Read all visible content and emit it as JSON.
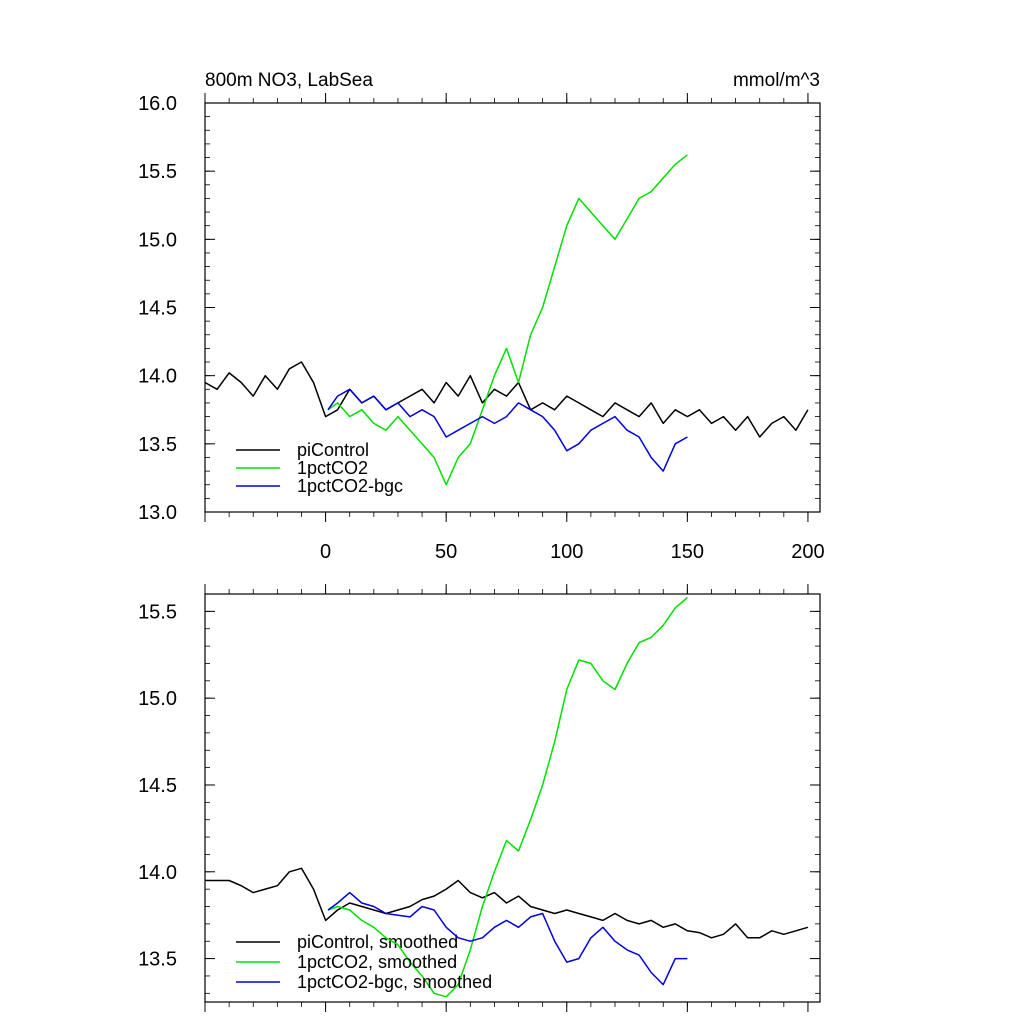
{
  "chart_data": [
    {
      "type": "line",
      "title": "800m NO3, LabSea",
      "units": "mmol/m^3",
      "xlim": [
        -50,
        205
      ],
      "ylim": [
        13.0,
        16.0
      ],
      "xticks": [
        0,
        50,
        100,
        150,
        200
      ],
      "yticks": [
        13.0,
        13.5,
        14.0,
        14.5,
        15.0,
        15.5,
        16.0
      ],
      "xtick_labels": [
        "0",
        "50",
        "100",
        "150",
        "200"
      ],
      "ytick_labels": [
        "13.0",
        "13.5",
        "14.0",
        "14.5",
        "15.0",
        "15.5",
        "16.0"
      ],
      "legend_position": "bottom-left",
      "series": [
        {
          "name": "piControl",
          "color": "#000000",
          "x": [
            -50,
            -45,
            -40,
            -35,
            -30,
            -25,
            -20,
            -15,
            -10,
            -5,
            0,
            5,
            10,
            15,
            20,
            25,
            30,
            35,
            40,
            45,
            50,
            55,
            60,
            65,
            70,
            75,
            80,
            85,
            90,
            95,
            100,
            105,
            110,
            115,
            120,
            125,
            130,
            135,
            140,
            145,
            150,
            155,
            160,
            165,
            170,
            175,
            180,
            185,
            190,
            195,
            200
          ],
          "y": [
            13.95,
            13.9,
            14.02,
            13.95,
            13.85,
            14.0,
            13.9,
            14.05,
            14.1,
            13.95,
            13.7,
            13.75,
            13.9,
            13.8,
            13.85,
            13.75,
            13.8,
            13.85,
            13.9,
            13.8,
            13.95,
            13.85,
            14.0,
            13.8,
            13.9,
            13.85,
            13.95,
            13.75,
            13.8,
            13.75,
            13.85,
            13.8,
            13.75,
            13.7,
            13.8,
            13.75,
            13.7,
            13.8,
            13.65,
            13.75,
            13.7,
            13.75,
            13.65,
            13.7,
            13.6,
            13.7,
            13.55,
            13.65,
            13.7,
            13.6,
            13.75
          ]
        },
        {
          "name": "1pctCO2",
          "color": "#00e000",
          "x": [
            1,
            5,
            10,
            15,
            20,
            25,
            30,
            35,
            40,
            45,
            50,
            55,
            60,
            65,
            70,
            75,
            80,
            85,
            90,
            95,
            100,
            105,
            110,
            115,
            120,
            125,
            130,
            135,
            140,
            145,
            150
          ],
          "y": [
            13.75,
            13.8,
            13.7,
            13.75,
            13.65,
            13.6,
            13.7,
            13.6,
            13.5,
            13.4,
            13.2,
            13.4,
            13.5,
            13.75,
            14.0,
            14.2,
            13.95,
            14.3,
            14.5,
            14.8,
            15.1,
            15.3,
            15.2,
            15.1,
            15.0,
            15.15,
            15.3,
            15.35,
            15.45,
            15.55,
            15.62
          ]
        },
        {
          "name": "1pctCO2-bgc",
          "color": "#0000e0",
          "x": [
            1,
            5,
            10,
            15,
            20,
            25,
            30,
            35,
            40,
            45,
            50,
            55,
            60,
            65,
            70,
            75,
            80,
            85,
            90,
            95,
            100,
            105,
            110,
            115,
            120,
            125,
            130,
            135,
            140,
            145,
            150
          ],
          "y": [
            13.75,
            13.85,
            13.9,
            13.8,
            13.85,
            13.75,
            13.8,
            13.7,
            13.75,
            13.7,
            13.55,
            13.6,
            13.65,
            13.7,
            13.65,
            13.7,
            13.8,
            13.75,
            13.7,
            13.6,
            13.45,
            13.5,
            13.6,
            13.65,
            13.7,
            13.6,
            13.55,
            13.4,
            13.3,
            13.5,
            13.55
          ]
        }
      ]
    },
    {
      "type": "line",
      "title": "",
      "xlim": [
        -50,
        205
      ],
      "ylim": [
        13.25,
        15.6
      ],
      "xticks": [
        0,
        50,
        100,
        150,
        200
      ],
      "yticks": [
        13.5,
        14.0,
        14.5,
        15.0,
        15.5
      ],
      "ytick_labels": [
        "13.5",
        "14.0",
        "14.5",
        "15.0",
        "15.5"
      ],
      "legend_position": "bottom-left",
      "series": [
        {
          "name": "piControl, smoothed",
          "color": "#000000",
          "x": [
            -50,
            -45,
            -40,
            -35,
            -30,
            -25,
            -20,
            -15,
            -10,
            -5,
            0,
            5,
            10,
            15,
            20,
            25,
            30,
            35,
            40,
            45,
            50,
            55,
            60,
            65,
            70,
            75,
            80,
            85,
            90,
            95,
            100,
            105,
            110,
            115,
            120,
            125,
            130,
            135,
            140,
            145,
            150,
            155,
            160,
            165,
            170,
            175,
            180,
            185,
            190,
            195,
            200
          ],
          "y": [
            13.95,
            13.95,
            13.95,
            13.92,
            13.88,
            13.9,
            13.92,
            14.0,
            14.02,
            13.9,
            13.72,
            13.78,
            13.82,
            13.8,
            13.78,
            13.76,
            13.78,
            13.8,
            13.84,
            13.86,
            13.9,
            13.95,
            13.88,
            13.85,
            13.88,
            13.82,
            13.86,
            13.8,
            13.78,
            13.76,
            13.78,
            13.76,
            13.74,
            13.72,
            13.76,
            13.72,
            13.7,
            13.72,
            13.68,
            13.7,
            13.66,
            13.65,
            13.62,
            13.64,
            13.7,
            13.62,
            13.62,
            13.66,
            13.64,
            13.66,
            13.68
          ]
        },
        {
          "name": "1pctCO2, smoothed",
          "color": "#00e000",
          "x": [
            1,
            5,
            10,
            15,
            20,
            25,
            30,
            35,
            40,
            45,
            50,
            55,
            60,
            65,
            70,
            75,
            80,
            85,
            90,
            95,
            100,
            105,
            110,
            115,
            120,
            125,
            130,
            135,
            140,
            145,
            150
          ],
          "y": [
            13.78,
            13.8,
            13.78,
            13.72,
            13.68,
            13.62,
            13.58,
            13.48,
            13.4,
            13.3,
            13.28,
            13.35,
            13.55,
            13.8,
            14.0,
            14.18,
            14.12,
            14.3,
            14.5,
            14.75,
            15.05,
            15.22,
            15.2,
            15.1,
            15.05,
            15.2,
            15.32,
            15.35,
            15.42,
            15.52,
            15.58
          ]
        },
        {
          "name": "1pctCO2-bgc, smoothed",
          "color": "#0000e0",
          "x": [
            1,
            5,
            10,
            15,
            20,
            25,
            30,
            35,
            40,
            45,
            50,
            55,
            60,
            65,
            70,
            75,
            80,
            85,
            90,
            95,
            100,
            105,
            110,
            115,
            120,
            125,
            130,
            135,
            140,
            145,
            150
          ],
          "y": [
            13.78,
            13.82,
            13.88,
            13.82,
            13.8,
            13.76,
            13.75,
            13.74,
            13.8,
            13.78,
            13.68,
            13.62,
            13.6,
            13.62,
            13.68,
            13.72,
            13.68,
            13.74,
            13.76,
            13.6,
            13.48,
            13.5,
            13.62,
            13.68,
            13.6,
            13.55,
            13.52,
            13.42,
            13.35,
            13.5,
            13.5
          ]
        }
      ]
    }
  ]
}
